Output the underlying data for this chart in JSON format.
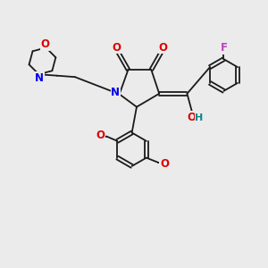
{
  "bg_color": "#ebebeb",
  "bond_color": "#1a1a1a",
  "N_color": "#0000ee",
  "O_color": "#dd0000",
  "F_color": "#bb44bb",
  "H_color": "#008888",
  "lw": 1.3,
  "fs": 8.5,
  "fig_size": [
    3.0,
    3.0
  ],
  "dpi": 100,
  "xlim": [
    0,
    10
  ],
  "ylim": [
    0,
    10
  ]
}
